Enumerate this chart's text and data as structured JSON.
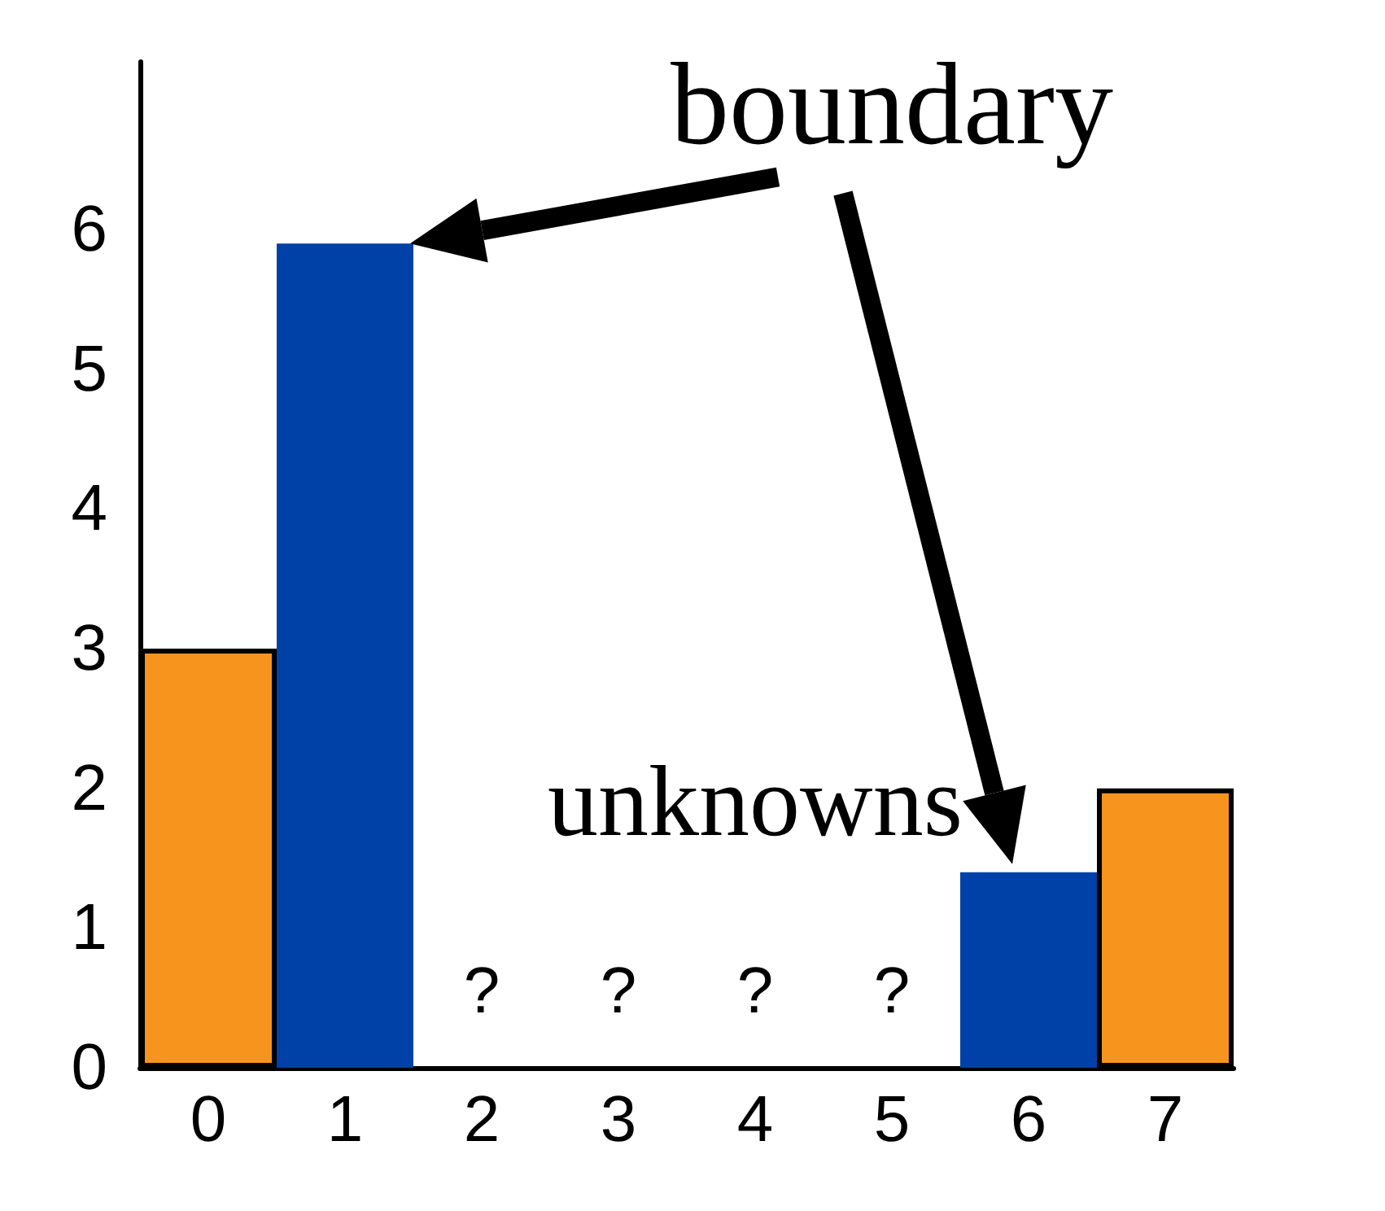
{
  "chart_data": {
    "type": "bar",
    "categories": [
      "0",
      "1",
      "2",
      "3",
      "4",
      "5",
      "6",
      "7"
    ],
    "values": [
      3,
      5.9,
      null,
      null,
      null,
      null,
      1.4,
      2
    ],
    "colors": [
      "#f7941d",
      "#0041a8",
      null,
      null,
      null,
      null,
      "#0041a8",
      "#f7941d"
    ],
    "ylim": [
      0,
      7.2
    ],
    "yticks": [
      0,
      1,
      2,
      3,
      4,
      5,
      6
    ],
    "grid": false,
    "annotations": [
      "boundary",
      "unknowns",
      "?",
      "?",
      "?",
      "?"
    ]
  }
}
